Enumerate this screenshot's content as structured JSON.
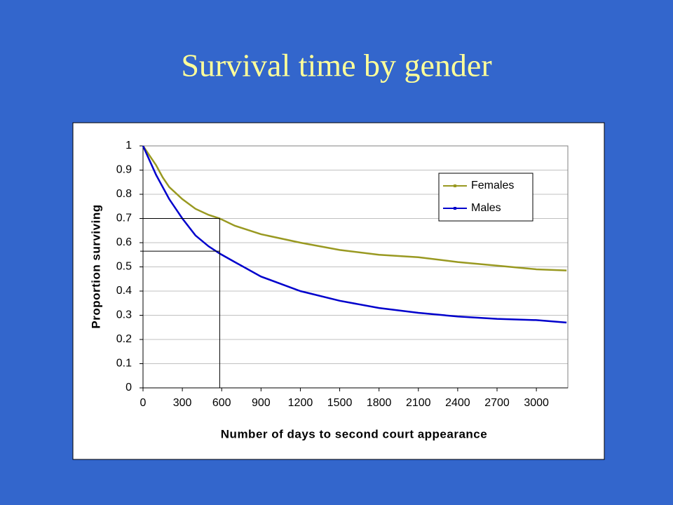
{
  "chart_data": {
    "type": "line",
    "title": "Survival time by gender",
    "x_label": "Number of days to second court appearance",
    "y_label": "Proportion surviving",
    "x": [
      0,
      50,
      100,
      150,
      200,
      300,
      400,
      500,
      585,
      700,
      900,
      1200,
      1500,
      1800,
      2100,
      2400,
      2700,
      3000,
      3230
    ],
    "series": [
      {
        "name": "Females",
        "color": "#999921",
        "values": [
          1,
          0.96,
          0.92,
          0.87,
          0.83,
          0.78,
          0.74,
          0.715,
          0.7,
          0.67,
          0.635,
          0.6,
          0.57,
          0.55,
          0.54,
          0.52,
          0.505,
          0.49,
          0.485
        ]
      },
      {
        "name": "Males",
        "color": "#0000cc",
        "values": [
          1,
          0.94,
          0.88,
          0.83,
          0.78,
          0.7,
          0.63,
          0.585,
          0.555,
          0.52,
          0.46,
          0.4,
          0.36,
          0.33,
          0.31,
          0.295,
          0.285,
          0.28,
          0.27
        ]
      }
    ],
    "reference_lines": {
      "x": 585,
      "y": [
        0.7,
        0.565
      ]
    },
    "xlim": [
      0,
      3240
    ],
    "ylim": [
      0,
      1
    ],
    "xticks": [
      0,
      300,
      600,
      900,
      1200,
      1500,
      1800,
      2100,
      2400,
      2700,
      3000
    ],
    "yticks": [
      0,
      0.1,
      0.2,
      0.3,
      0.4,
      0.5,
      0.6,
      0.7,
      0.8,
      0.9,
      1
    ],
    "grid": true,
    "legend": "upper right"
  }
}
